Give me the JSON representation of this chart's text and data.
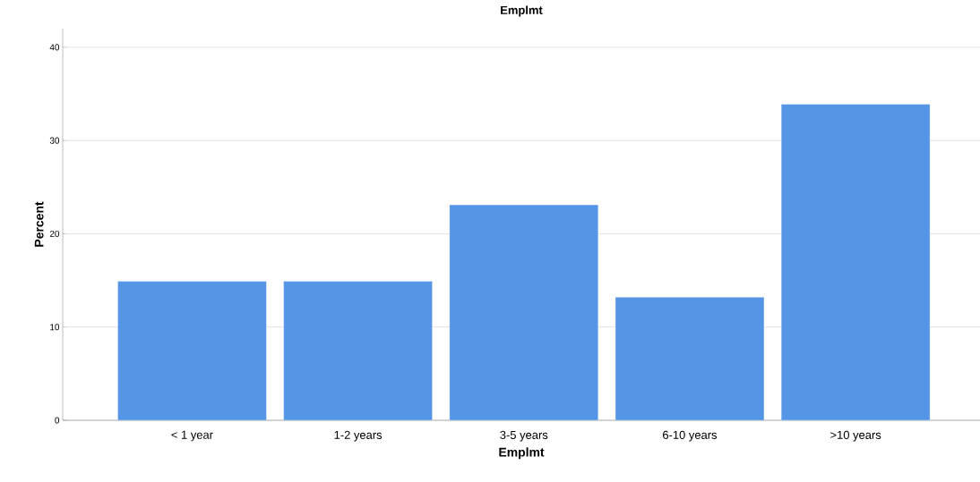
{
  "chart_data": {
    "type": "bar",
    "title": "Emplmt",
    "xlabel": "Emplmt",
    "ylabel": "Percent",
    "categories": [
      "< 1 year",
      "1-2 years",
      "3-5 years",
      "6-10 years",
      ">10 years"
    ],
    "values": [
      14.9,
      14.9,
      23.1,
      13.2,
      33.9
    ],
    "color": "#5595e5",
    "ylim": [
      0,
      42
    ],
    "yticks": [
      0,
      10,
      20,
      30,
      40
    ],
    "grid": "y"
  }
}
